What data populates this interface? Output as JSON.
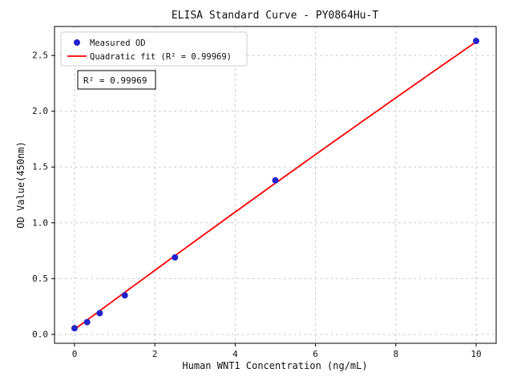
{
  "chart_data": {
    "type": "scatter",
    "title": "ELISA Standard Curve - PY0864Hu-T",
    "xlabel": "Human WNT1 Concentration (ng/mL)",
    "ylabel": "OD Value(450nm)",
    "xlim": [
      -0.5,
      10.5
    ],
    "ylim": [
      -0.08,
      2.76
    ],
    "x_ticks": [
      0,
      2,
      4,
      6,
      8,
      10
    ],
    "x_tick_labels": [
      "0",
      "2",
      "4",
      "6",
      "8",
      "10"
    ],
    "y_ticks": [
      0,
      0.5,
      1.0,
      1.5,
      2.0,
      2.5
    ],
    "y_tick_labels": [
      "0.0",
      "0.5",
      "1.0",
      "1.5",
      "2.0",
      "2.5"
    ],
    "grid": true,
    "legend_position": "upper left",
    "annotation": "R² = 0.99969",
    "series": [
      {
        "name": "Measured OD",
        "type": "scatter",
        "color": "#2222cc",
        "x": [
          0,
          0.313,
          0.625,
          1.25,
          2.5,
          5,
          10
        ],
        "y": [
          0.055,
          0.11,
          0.19,
          0.35,
          0.69,
          1.38,
          2.63
        ]
      },
      {
        "name": "Quadratic fit (R² = 0.99969)",
        "type": "line",
        "color": "#ff0000",
        "fit_coefficients": [
          0.045,
          0.2662,
          -0.00085
        ],
        "x_range": [
          0,
          10
        ],
        "r_squared": 0.99969
      }
    ]
  }
}
